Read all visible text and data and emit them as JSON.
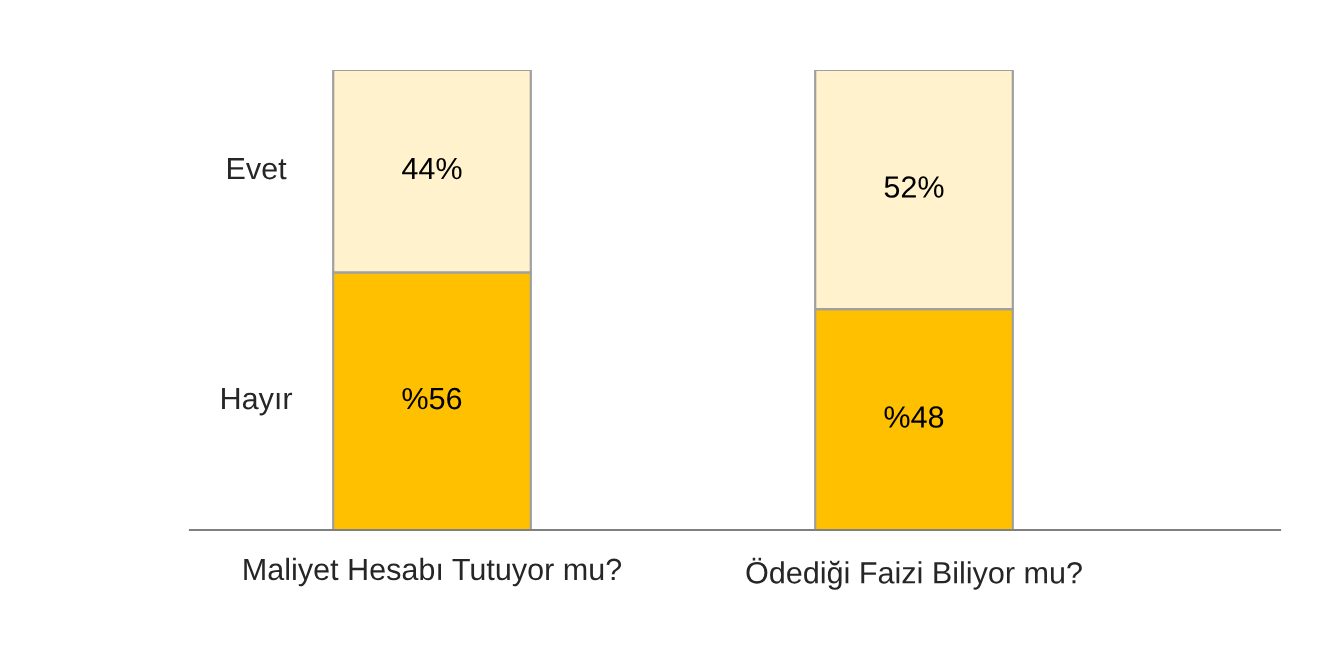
{
  "chart_data": {
    "type": "bar",
    "stacked": true,
    "categories": [
      "Maliyet Hesabı Tutuyor mu?",
      "Ödediği Faizi Biliyor mu?"
    ],
    "series": [
      {
        "name": "Hayır",
        "color": "#ffc000",
        "values": [
          56,
          48
        ],
        "value_labels": [
          "%56",
          "%48"
        ]
      },
      {
        "name": "Evet",
        "color": "#fff2cc",
        "values": [
          44,
          52
        ],
        "value_labels": [
          "44%",
          "52%"
        ]
      }
    ]
  }
}
